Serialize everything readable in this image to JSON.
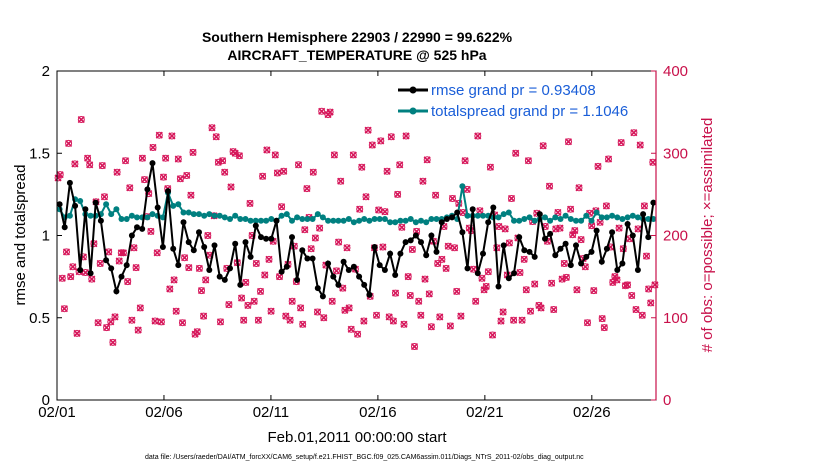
{
  "chart_data": {
    "type": "line",
    "title_line1": "Southern Hemisphere 22903 / 22990 = 99.622%",
    "title_line2": "AIRCRAFT_TEMPERATURE @ 525 hPa",
    "xlabel": "Feb.01,2011 00:00:00 start",
    "ylabel_left": "rmse and totalspread",
    "ylabel_right": "# of obs: o=possible; ×=assimilated",
    "x_ticks": [
      "02/01",
      "02/06",
      "02/11",
      "02/16",
      "02/21",
      "02/26"
    ],
    "x_tick_days": [
      0,
      5,
      10,
      15,
      20,
      25
    ],
    "xlim": [
      0,
      28
    ],
    "ylim_left": [
      0,
      2
    ],
    "y_ticks_left": [
      "0",
      "0.5",
      "1",
      "1.5",
      "2"
    ],
    "ylim_right": [
      0,
      400
    ],
    "y_ticks_right": [
      "0",
      "100",
      "200",
      "300",
      "400"
    ],
    "legend": {
      "placement": "top-right",
      "rmse_label": "rmse grand pr = 0.93408",
      "spread_label": "totalspread grand pr = 1.1046"
    },
    "colors": {
      "rmse": "#000000",
      "spread": "#008080",
      "obs": "#d6165a",
      "legend_text": "#1a5ed8",
      "right_axis": "#c8104a"
    },
    "series": [
      {
        "name": "rmse",
        "values": [
          1.19,
          1.05,
          1.32,
          1.18,
          0.79,
          1.16,
          0.77,
          1.2,
          1.09,
          0.85,
          0.8,
          0.66,
          0.75,
          0.82,
          1.0,
          1.05,
          1.04,
          1.28,
          1.44,
          1.17,
          0.93,
          1.27,
          0.92,
          0.82,
          1.08,
          0.96,
          0.91,
          1.02,
          0.93,
          0.79,
          0.94,
          0.75,
          0.73,
          0.8,
          0.95,
          0.7,
          0.96,
          0.87,
          1.06,
          0.99,
          0.98,
          0.98,
          1.09,
          0.78,
          0.81,
          0.99,
          0.73,
          0.91,
          0.86,
          0.86,
          0.68,
          0.63,
          0.83,
          0.75,
          0.7,
          0.84,
          0.79,
          0.81,
          0.75,
          0.7,
          0.64,
          0.93,
          0.82,
          0.79,
          0.89,
          0.76,
          0.89,
          0.96,
          0.97,
          1.0,
          0.96,
          0.88,
          1.0,
          0.9,
          1.08,
          1.1,
          1.11,
          1.14,
          1.02,
          0.8,
          1.16,
          0.77,
          0.89,
          1.08,
          1.17,
          0.69,
          0.94,
          0.74,
          0.77,
          0.99,
          0.91,
          0.9,
          0.87,
          1.13,
          0.98,
          1.01,
          0.88,
          0.92,
          0.95,
          0.82,
          0.94,
          0.83,
          0.87,
          0.9,
          1.03,
          0.84,
          0.92,
          1.02,
          0.79,
          0.83,
          1.07,
          1.0,
          0.79,
          1.13,
          0.99,
          1.2
        ]
      },
      {
        "name": "totalspread",
        "values": [
          1.16,
          1.11,
          1.12,
          1.22,
          1.21,
          1.13,
          1.12,
          1.12,
          1.13,
          1.19,
          1.13,
          1.16,
          1.1,
          1.1,
          1.12,
          1.11,
          1.11,
          1.11,
          1.13,
          1.12,
          1.11,
          1.26,
          1.18,
          1.19,
          1.14,
          1.14,
          1.13,
          1.13,
          1.12,
          1.13,
          1.12,
          1.12,
          1.11,
          1.1,
          1.12,
          1.1,
          1.1,
          1.09,
          1.09,
          1.09,
          1.09,
          1.1,
          1.09,
          1.12,
          1.13,
          1.09,
          1.11,
          1.1,
          1.1,
          1.1,
          1.13,
          1.11,
          1.09,
          1.09,
          1.09,
          1.09,
          1.1,
          1.08,
          1.09,
          1.1,
          1.09,
          1.1,
          1.1,
          1.1,
          1.08,
          1.08,
          1.09,
          1.09,
          1.1,
          1.08,
          1.09,
          1.08,
          1.1,
          1.1,
          1.1,
          1.11,
          1.12,
          1.1,
          1.3,
          1.12,
          1.12,
          1.12,
          1.12,
          1.12,
          1.11,
          1.11,
          1.13,
          1.14,
          1.09,
          1.09,
          1.1,
          1.11,
          1.09,
          1.1,
          1.11,
          1.09,
          1.11,
          1.1,
          1.12,
          1.1,
          1.09,
          1.09,
          1.12,
          1.09,
          1.14,
          1.11,
          1.11,
          1.12,
          1.11,
          1.1,
          1.11,
          1.12,
          1.11,
          1.1,
          1.1,
          1.1
        ]
      },
      {
        "name": "obs",
        "values": [
          270,
          274,
          148,
          111,
          180,
          312,
          150,
          162,
          287,
          81,
          156,
          341,
          174,
          155,
          294,
          286,
          147,
          190,
          241,
          94,
          166,
          285,
          247,
          88,
          180,
          95,
          70,
          101,
          277,
          169,
          179,
          179,
          291,
          144,
          258,
          97,
          185,
          161,
          85,
          112,
          294,
          268,
          223,
          251,
          205,
          307,
          96,
          179,
          322,
          95,
          271,
          294,
          257,
          135,
          321,
          146,
          108,
          293,
          269,
          94,
          173,
          273,
          161,
          249,
          301,
          80,
          83,
          160,
          133,
          102,
          146,
          200,
          176,
          331,
          224,
          320,
          289,
          95,
          291,
          277,
          160,
          116,
          259,
          302,
          300,
          167,
          297,
          124,
          97,
          143,
          115,
          239,
          200,
          120,
          166,
          97,
          132,
          272,
          152,
          304,
          171,
          108,
          193,
          298,
          276,
          150,
          235,
          278,
          102,
          165,
          97,
          120,
          187,
          144,
          286,
          112,
          92,
          207,
          257,
          222,
          184,
          277,
          197,
          107,
          209,
          351,
          100,
          164,
          347,
          350,
          120,
          298,
          157,
          192,
          266,
          136,
          109,
          185,
          112,
          86,
          298,
          159,
          80,
          232,
          283,
          96,
          247,
          328,
          126,
          310,
          185,
          103,
          231,
          315,
          186,
          229,
          278,
          101,
          320,
          96,
          130,
          250,
          286,
          210,
          92,
          321,
          150,
          127,
          183,
          65,
          205,
          120,
          103,
          266,
          147,
          292,
          129,
          89,
          193,
          249,
          166,
          101,
          171,
          211,
          160,
          187,
          90,
          245,
          185,
          132,
          239,
          102,
          228,
          291,
          256,
          209,
          206,
          159,
          120,
          321,
          230,
          148,
          134,
          138,
          156,
          283,
          79,
          225,
          185,
          211,
          96,
          107,
          208,
          152,
          191,
          245,
          97,
          300,
          197,
          155,
          97,
          171,
          134,
          291,
          108,
          217,
          141,
          227,
          115,
          112,
          309,
          211,
          193,
          260,
          142,
          110,
          208,
          228,
          209,
          147,
          166,
          149,
          314,
          232,
          201,
          206,
          134,
          258,
          195,
          172,
          162,
          94,
          227,
          212,
          133,
          230,
          284,
          216,
          99,
          88,
          236,
          293,
          186,
          143,
          150,
          146,
          209,
          313,
          184,
          139,
          140,
          196,
          127,
          325,
          110,
          208,
          310,
          103,
          236,
          175,
          135,
          118,
          289,
          140
        ]
      }
    ],
    "footnote": "data file: /Users/raeder/DAI/ATM_forcXX/CAM6_setup/f.e21.FHIST_BGC.f09_025.CAM6assim.011/Diags_NTrS_2011-02/obs_diag_output.nc"
  }
}
